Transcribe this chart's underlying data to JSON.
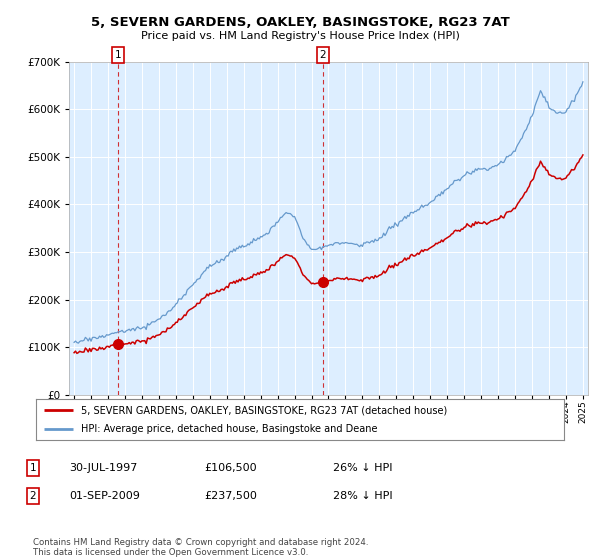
{
  "title": "5, SEVERN GARDENS, OAKLEY, BASINGSTOKE, RG23 7AT",
  "subtitle": "Price paid vs. HM Land Registry's House Price Index (HPI)",
  "legend_line1": "5, SEVERN GARDENS, OAKLEY, BASINGSTOKE, RG23 7AT (detached house)",
  "legend_line2": "HPI: Average price, detached house, Basingstoke and Deane",
  "footer": "Contains HM Land Registry data © Crown copyright and database right 2024.\nThis data is licensed under the Open Government Licence v3.0.",
  "sale1_date": "30-JUL-1997",
  "sale1_price": 106500,
  "sale1_label": "26% ↓ HPI",
  "sale2_date": "01-SEP-2009",
  "sale2_price": 237500,
  "sale2_label": "28% ↓ HPI",
  "sale1_year": 1997.583,
  "sale2_year": 2009.667,
  "price_color": "#cc0000",
  "hpi_color": "#6699cc",
  "plot_bg_color": "#ddeeff",
  "ylim": [
    0,
    700000
  ],
  "yticks": [
    0,
    100000,
    200000,
    300000,
    400000,
    500000,
    600000,
    700000
  ],
  "xmin": 1994.7,
  "xmax": 2025.3
}
